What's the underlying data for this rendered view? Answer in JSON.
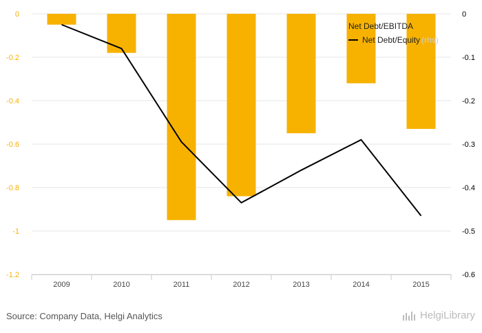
{
  "chart_data": {
    "type": "bar+line",
    "categories": [
      "2009",
      "2010",
      "2011",
      "2012",
      "2013",
      "2014",
      "2015"
    ],
    "series": [
      {
        "name": "Net Debt/EBITDA",
        "type": "bar",
        "axis": "left",
        "color": "#f7b200",
        "values": [
          -0.05,
          -0.18,
          -0.95,
          -0.84,
          -0.55,
          -0.32,
          -0.53
        ]
      },
      {
        "name": "Net Debt/Equity",
        "type": "line",
        "axis": "right",
        "color": "#000000",
        "values": [
          -0.025,
          -0.08,
          -0.295,
          -0.435,
          -0.36,
          -0.29,
          -0.465
        ]
      }
    ],
    "left_axis": {
      "ylim": [
        -1.2,
        0
      ],
      "ticks": [
        "0",
        "-0.2",
        "-0.4",
        "-0.6",
        "-0.8",
        "-1",
        "-1.2"
      ],
      "tick_values": [
        0,
        -0.2,
        -0.4,
        -0.6,
        -0.8,
        -1,
        -1.2
      ],
      "tick_color": "#f7b200"
    },
    "right_axis": {
      "ylim": [
        -0.6,
        0
      ],
      "ticks": [
        "0",
        "-0.1",
        "-0.2",
        "-0.3",
        "-0.4",
        "-0.5",
        "-0.6"
      ],
      "tick_values": [
        0,
        -0.1,
        -0.2,
        -0.3,
        -0.4,
        -0.5,
        -0.6
      ],
      "tick_color": "#000000"
    },
    "legend": {
      "placement": "top-right",
      "rhs_tag": "(rhs)"
    },
    "grid": true
  },
  "footer": {
    "source": "Source: Company Data, Helgi Analytics",
    "logo_text": "HelgiLibrary",
    "logo_icon": "bar-chart-icon"
  }
}
